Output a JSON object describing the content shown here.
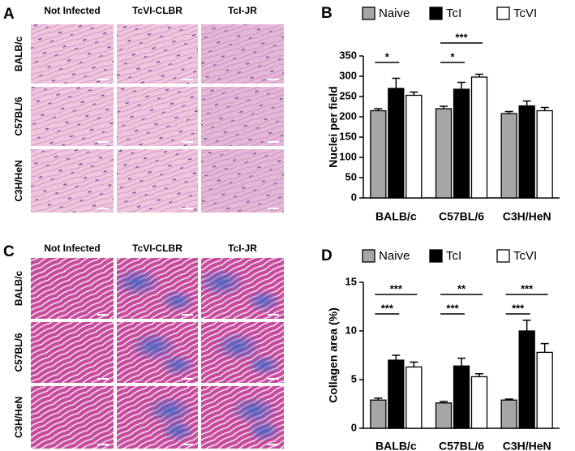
{
  "panels": [
    {
      "letter": "A",
      "columns": [
        "Not Infected",
        "TcVI-CLBR",
        "TcI-JR"
      ],
      "rows": [
        "BALB/c",
        "C57BL/6",
        "C3H/HeN"
      ]
    },
    {
      "letter": "C",
      "columns": [
        "Not Infected",
        "TcVI-CLBR",
        "TcI-JR"
      ],
      "rows": [
        "BALB/c",
        "C57BL/6",
        "C3H/HeN"
      ]
    }
  ],
  "chart_data": [
    {
      "type": "bar",
      "panel": "B",
      "y_label": "Nuclei per field",
      "categories": [
        "BALB/c",
        "C57BL/6",
        "C3H/HeN"
      ],
      "series": [
        {
          "name": "Naive",
          "color": "#a6a6a6",
          "values": [
            215,
            220,
            208
          ],
          "errors": [
            5,
            6,
            5
          ]
        },
        {
          "name": "TcI",
          "color": "#000000",
          "values": [
            270,
            268,
            227
          ],
          "errors": [
            25,
            17,
            12
          ]
        },
        {
          "name": "TcVI",
          "color": "#ffffff",
          "values": [
            253,
            298,
            215
          ],
          "errors": [
            8,
            7,
            8
          ]
        }
      ],
      "annotations": [
        {
          "category": "BALB/c",
          "between": [
            "Naive",
            "TcI"
          ],
          "label": "*"
        },
        {
          "category": "C57BL/6",
          "between": [
            "Naive",
            "TcI"
          ],
          "label": "*"
        },
        {
          "category": "C57BL/6",
          "between": [
            "Naive",
            "TcVI"
          ],
          "label": "***"
        }
      ],
      "ylim": [
        0,
        350
      ],
      "yticks": [
        0,
        50,
        100,
        150,
        200,
        250,
        300,
        350
      ],
      "legend": "top"
    },
    {
      "type": "bar",
      "panel": "D",
      "y_label": "Collagen area (%)",
      "categories": [
        "BALB/c",
        "C57BL/6",
        "C3H/HeN"
      ],
      "series": [
        {
          "name": "Naive",
          "color": "#a6a6a6",
          "values": [
            2.9,
            2.6,
            2.9
          ],
          "errors": [
            0.2,
            0.15,
            0.1
          ]
        },
        {
          "name": "TcI",
          "color": "#000000",
          "values": [
            7.0,
            6.4,
            10.0
          ],
          "errors": [
            0.5,
            0.8,
            1.1
          ]
        },
        {
          "name": "TcVI",
          "color": "#ffffff",
          "values": [
            6.3,
            5.3,
            7.8
          ],
          "errors": [
            0.5,
            0.3,
            0.9
          ]
        }
      ],
      "annotations": [
        {
          "category": "BALB/c",
          "between": [
            "Naive",
            "TcI"
          ],
          "label": "***"
        },
        {
          "category": "BALB/c",
          "between": [
            "Naive",
            "TcVI"
          ],
          "label": "***"
        },
        {
          "category": "C57BL/6",
          "between": [
            "Naive",
            "TcI"
          ],
          "label": "***"
        },
        {
          "category": "C57BL/6",
          "between": [
            "Naive",
            "TcVI"
          ],
          "label": "**"
        },
        {
          "category": "C3H/HeN",
          "between": [
            "Naive",
            "TcI"
          ],
          "label": "***"
        },
        {
          "category": "C3H/HeN",
          "between": [
            "Naive",
            "TcVI"
          ],
          "label": "***"
        }
      ],
      "ylim": [
        0,
        15
      ],
      "yticks": [
        0,
        5,
        10,
        15
      ],
      "legend": "top"
    }
  ]
}
